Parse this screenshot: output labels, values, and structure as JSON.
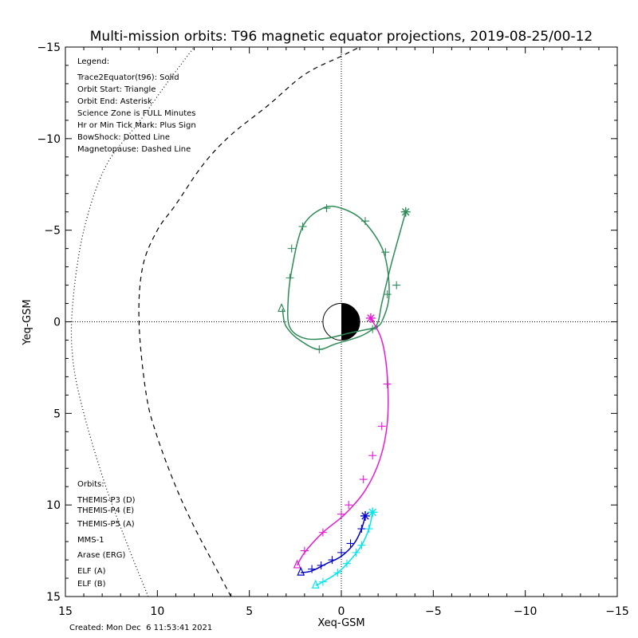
{
  "chart_data": {
    "type": "line",
    "title": "Multi-mission orbits: T96 magnetic equator projections, 2019-08-25/00-12",
    "xlabel": "Xeq-GSM",
    "ylabel": "Yeq-GSM",
    "xlim": [
      15,
      -15
    ],
    "ylim": [
      -15,
      15
    ],
    "x_ticks": [
      15,
      10,
      5,
      0,
      -5,
      -10,
      -15
    ],
    "y_ticks": [
      -15,
      -10,
      -5,
      0,
      5,
      10,
      15
    ],
    "x_tick_labels": [
      "15",
      "10",
      "5",
      "0",
      "−5",
      "−10",
      "−15"
    ],
    "y_tick_labels": [
      "−15",
      "−10",
      "−5",
      "0",
      "5",
      "10",
      "15"
    ],
    "legend": {
      "heading": "Legend:",
      "items": [
        "Trace2Equator(t96): Solid",
        "Orbit Start: Triangle",
        "Orbit End: Asterisk",
        "Science Zone is FULL Minutes",
        "Hr or Min Tick Mark: Plus Sign",
        "BowShock: Dotted Line",
        "Magnetopause: Dashed Line"
      ]
    },
    "orbits_legend": {
      "heading": "Orbits:",
      "items": [
        {
          "label": "THEMIS-P3 (D)",
          "color": "#00e5f0"
        },
        {
          "label": "THEMIS-P4 (E)",
          "color": "#0000c8"
        },
        {
          "label": "THEMIS-P5 (A)",
          "color": "#e619d6"
        },
        {
          "label": "MMS-1",
          "color": "#000000"
        },
        {
          "label": "Arase (ERG)",
          "color": "#2e8b57"
        },
        {
          "label": "ELF (A)",
          "color": "#1e78ff"
        },
        {
          "label": "ELF (B)",
          "color": "#e01010"
        }
      ]
    },
    "earth": {
      "radius": 1.0
    },
    "magnetopause": {
      "x": [
        6.0,
        7.0,
        8.0,
        9.0,
        10.0,
        10.6,
        11.0,
        10.8,
        10.0,
        9.0,
        7.5,
        6.0,
        4.0,
        2.0,
        0.0,
        -1.0
      ],
      "y": [
        15,
        13.1,
        11.2,
        9.0,
        6.3,
        4.0,
        0.0,
        -3.0,
        -5.0,
        -6.4,
        -8.6,
        -10.2,
        -11.8,
        -13.5,
        -14.5,
        -15
      ]
    },
    "bowshock": {
      "x": [
        10.5,
        11.5,
        12.8,
        14.0,
        14.6,
        14.6,
        14.0,
        12.8,
        11.0,
        9.5,
        8.0
      ],
      "y": [
        15,
        12.5,
        9.0,
        5.0,
        2.0,
        -1.0,
        -5.0,
        -8.5,
        -10.9,
        -13.0,
        -15
      ]
    },
    "series": [
      {
        "name": "Arase (ERG)",
        "color": "#2e8b57",
        "x": [
          3.2,
          3.1,
          2.9,
          2.4,
          1.3,
          0.3,
          -1.0,
          -1.7,
          -2.0,
          -2.2,
          -2.6,
          -3.0,
          -3.5
        ],
        "y": [
          -0.7,
          0.0,
          0.4,
          0.9,
          1.5,
          1.2,
          0.8,
          0.4,
          0.0,
          -1.0,
          -2.7,
          -4.2,
          -6.0
        ],
        "ticks": [
          [
            1.2,
            1.5
          ],
          [
            -1.7,
            0.4
          ],
          [
            -3.0,
            -2.0
          ]
        ],
        "start": [
          3.25,
          -0.7
        ],
        "end": [
          -3.5,
          -6.0
        ]
      },
      {
        "name": "Arase (ERG)",
        "color": "#2e8b57",
        "x": [
          -2.0,
          -0.5,
          0.8,
          2.0,
          2.8,
          2.9,
          2.7,
          2.1,
          1.0,
          0.0,
          -1.2,
          -2.3,
          -2.6,
          -2.2,
          -1.8
        ],
        "y": [
          0.3,
          0.6,
          0.9,
          0.9,
          0.3,
          -1.0,
          -2.8,
          -5.2,
          -6.2,
          -6.2,
          -5.5,
          -3.8,
          -1.5,
          0.0,
          0.3
        ],
        "ticks": [
          [
            2.8,
            -2.4
          ],
          [
            2.7,
            -4.0
          ],
          [
            2.1,
            -5.2
          ],
          [
            0.8,
            -6.2
          ],
          [
            -1.3,
            -5.5
          ],
          [
            -2.4,
            -3.8
          ],
          [
            -2.5,
            -1.5
          ]
        ],
        "start": null,
        "end": null
      },
      {
        "name": "THEMIS-P5 (A)",
        "color": "#e619d6",
        "x": [
          -1.6,
          -2.2,
          -2.5,
          -2.5,
          -2.1,
          -1.3,
          -0.2,
          1.0,
          2.0,
          2.4
        ],
        "y": [
          -0.2,
          1.0,
          3.0,
          5.5,
          7.5,
          9.2,
          10.5,
          11.5,
          12.6,
          13.3
        ],
        "ticks": [
          [
            -2.5,
            3.4
          ],
          [
            -2.2,
            5.7
          ],
          [
            -1.7,
            7.3
          ],
          [
            -1.2,
            8.6
          ],
          [
            -0.4,
            10.0
          ],
          [
            0.0,
            10.5
          ],
          [
            1.0,
            11.5
          ],
          [
            2.0,
            12.5
          ]
        ],
        "start": [
          2.4,
          13.3
        ],
        "end": [
          -1.6,
          -0.2
        ]
      },
      {
        "name": "THEMIS-P4 (E)",
        "color": "#0000c8",
        "x": [
          -1.3,
          -1.1,
          -0.7,
          0.0,
          0.8,
          1.6,
          2.2
        ],
        "y": [
          10.6,
          11.3,
          12.1,
          12.8,
          13.2,
          13.6,
          13.7
        ],
        "ticks": [
          [
            -1.1,
            11.3
          ],
          [
            -0.5,
            12.1
          ],
          [
            0.0,
            12.6
          ],
          [
            0.5,
            13.0
          ],
          [
            1.1,
            13.3
          ],
          [
            1.6,
            13.5
          ]
        ],
        "start": [
          2.2,
          13.7
        ],
        "end": [
          -1.3,
          10.6
        ]
      },
      {
        "name": "THEMIS-P3 (D)",
        "color": "#00e5f0",
        "x": [
          -1.7,
          -1.5,
          -1.1,
          -0.5,
          0.2,
          1.0,
          1.4
        ],
        "y": [
          10.4,
          11.3,
          12.2,
          13.0,
          13.7,
          14.2,
          14.4
        ],
        "ticks": [
          [
            -1.5,
            11.3
          ],
          [
            -1.1,
            12.2
          ],
          [
            -0.8,
            12.6
          ],
          [
            -0.3,
            13.2
          ],
          [
            0.2,
            13.7
          ],
          [
            1.0,
            14.2
          ]
        ],
        "start": [
          1.4,
          14.4
        ],
        "end": [
          -1.7,
          10.4
        ]
      }
    ]
  },
  "footer": {
    "created": "Created: Mon Dec  6 11:53:41 2021"
  }
}
